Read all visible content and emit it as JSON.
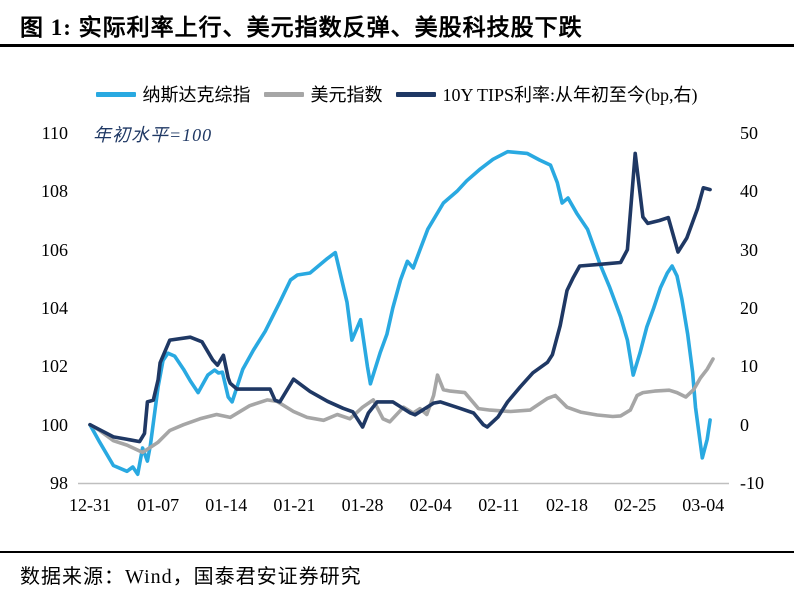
{
  "title": "图 1:  实际利率上行、美元指数反弹、美股科技股下跌",
  "annotation": "年初水平=100",
  "source_text": "数据来源：Wind，国泰君安证券研究",
  "colors": {
    "nasdaq_blue": "#29A9E1",
    "dollar_gray": "#A6A6A6",
    "tips_navy": "#1F3864",
    "axis_line": "#BFBFBF",
    "rule_black": "#000000",
    "annotation_navy": "#1F3864"
  },
  "chart_data": {
    "type": "line",
    "title": "实际利率上行、美元指数反弹、美股科技股下跌",
    "annotation": "年初水平=100",
    "x_tick_labels": [
      "12-31",
      "01-07",
      "01-14",
      "01-21",
      "01-28",
      "02-04",
      "02-11",
      "02-18",
      "02-25",
      "03-04"
    ],
    "x_tick_days": [
      0,
      7,
      14,
      21,
      28,
      35,
      42,
      49,
      56,
      63
    ],
    "x_domain_days": [
      0,
      64
    ],
    "left_axis": {
      "ticks": [
        110,
        108,
        106,
        104,
        102,
        100,
        98
      ],
      "range": [
        98,
        110
      ]
    },
    "right_axis": {
      "ticks": [
        50,
        40,
        30,
        20,
        10,
        0,
        -10
      ],
      "range": [
        -10,
        50
      ]
    },
    "grid": "off",
    "legend_position": "top",
    "series": [
      {
        "name": "纳斯达克综指",
        "axis": "left",
        "color": "#29A9E1",
        "points": [
          [
            0,
            100
          ],
          [
            1,
            99.4
          ],
          [
            2.4,
            98.6
          ],
          [
            3.8,
            98.4
          ],
          [
            4.4,
            98.55
          ],
          [
            4.9,
            98.3
          ],
          [
            5.4,
            99.2
          ],
          [
            5.9,
            98.75
          ],
          [
            6.2,
            99.3
          ],
          [
            7,
            101.3
          ],
          [
            7.5,
            102.2
          ],
          [
            8,
            102.45
          ],
          [
            8.7,
            102.35
          ],
          [
            9.6,
            101.9
          ],
          [
            10.3,
            101.5
          ],
          [
            11.1,
            101.1
          ],
          [
            12.1,
            101.7
          ],
          [
            12.8,
            101.87
          ],
          [
            13.2,
            101.77
          ],
          [
            13.6,
            101.8
          ],
          [
            14.2,
            100.95
          ],
          [
            14.6,
            100.78
          ],
          [
            15.7,
            101.9
          ],
          [
            16.8,
            102.56
          ],
          [
            18,
            103.2
          ],
          [
            19.5,
            104.2
          ],
          [
            20.6,
            104.96
          ],
          [
            21.3,
            105.13
          ],
          [
            22.6,
            105.2
          ],
          [
            24.4,
            105.7
          ],
          [
            25.2,
            105.9
          ],
          [
            26.4,
            104.2
          ],
          [
            26.9,
            102.9
          ],
          [
            27.8,
            103.6
          ],
          [
            28.5,
            102
          ],
          [
            28.8,
            101.4
          ],
          [
            29.8,
            102.46
          ],
          [
            30.5,
            103.1
          ],
          [
            31.1,
            104
          ],
          [
            31.9,
            104.96
          ],
          [
            32.6,
            105.6
          ],
          [
            33.2,
            105.37
          ],
          [
            33.9,
            106
          ],
          [
            34.7,
            106.7
          ],
          [
            36.3,
            107.6
          ],
          [
            37.7,
            108
          ],
          [
            38.7,
            108.36
          ],
          [
            40.1,
            108.77
          ],
          [
            41.4,
            109.1
          ],
          [
            42.9,
            109.36
          ],
          [
            44.9,
            109.3
          ],
          [
            46.2,
            109.07
          ],
          [
            47.3,
            108.9
          ],
          [
            48,
            108.3
          ],
          [
            48.5,
            107.6
          ],
          [
            49.1,
            107.77
          ],
          [
            50,
            107.25
          ],
          [
            51.1,
            106.7
          ],
          [
            52.4,
            105.5
          ],
          [
            53.4,
            104.7
          ],
          [
            54.5,
            103.7
          ],
          [
            55.2,
            102.9
          ],
          [
            55.8,
            101.7
          ],
          [
            56.5,
            102.46
          ],
          [
            57.2,
            103.35
          ],
          [
            57.9,
            104
          ],
          [
            58.6,
            104.7
          ],
          [
            59.3,
            105.2
          ],
          [
            59.8,
            105.44
          ],
          [
            60.3,
            105.1
          ],
          [
            60.8,
            104.3
          ],
          [
            61.4,
            103.1
          ],
          [
            61.9,
            101.8
          ],
          [
            62.2,
            100.6
          ],
          [
            62.9,
            98.86
          ],
          [
            63.4,
            99.5
          ],
          [
            63.7,
            100.16
          ]
        ]
      },
      {
        "name": "美元指数",
        "axis": "left",
        "color": "#A6A6A6",
        "points": [
          [
            0,
            100
          ],
          [
            1,
            99.8
          ],
          [
            2.4,
            99.45
          ],
          [
            3.8,
            99.3
          ],
          [
            5.4,
            99.05
          ],
          [
            7,
            99.4
          ],
          [
            8.2,
            99.8
          ],
          [
            9.6,
            100
          ],
          [
            11.3,
            100.2
          ],
          [
            13,
            100.35
          ],
          [
            14.4,
            100.25
          ],
          [
            16.4,
            100.65
          ],
          [
            18.2,
            100.85
          ],
          [
            19.2,
            100.8
          ],
          [
            20.9,
            100.45
          ],
          [
            22.3,
            100.25
          ],
          [
            24,
            100.15
          ],
          [
            25.4,
            100.35
          ],
          [
            26.7,
            100.2
          ],
          [
            28,
            100.6
          ],
          [
            29.1,
            100.85
          ],
          [
            30.1,
            100.2
          ],
          [
            30.8,
            100.1
          ],
          [
            32.2,
            100.6
          ],
          [
            33.2,
            100.4
          ],
          [
            33.9,
            100.55
          ],
          [
            34.6,
            100.35
          ],
          [
            35.3,
            101
          ],
          [
            35.7,
            101.7
          ],
          [
            36.3,
            101.2
          ],
          [
            37,
            101.15
          ],
          [
            38.5,
            101.1
          ],
          [
            39.9,
            100.55
          ],
          [
            41.1,
            100.5
          ],
          [
            43.2,
            100.45
          ],
          [
            45.2,
            100.5
          ],
          [
            47,
            100.9
          ],
          [
            47.8,
            101
          ],
          [
            49,
            100.6
          ],
          [
            50.4,
            100.43
          ],
          [
            52.1,
            100.33
          ],
          [
            53.7,
            100.28
          ],
          [
            54.5,
            100.3
          ],
          [
            55.5,
            100.5
          ],
          [
            56.2,
            101
          ],
          [
            56.8,
            101.1
          ],
          [
            58,
            101.15
          ],
          [
            59.5,
            101.18
          ],
          [
            60.3,
            101.1
          ],
          [
            61.2,
            100.95
          ],
          [
            62,
            101.2
          ],
          [
            62.7,
            101.6
          ],
          [
            63.4,
            101.9
          ],
          [
            64,
            102.25
          ]
        ]
      },
      {
        "name": "10Y TIPS利率:从年初至今(bp,右)",
        "axis": "right",
        "color": "#1F3864",
        "points": [
          [
            0,
            0
          ],
          [
            2.4,
            -2.1
          ],
          [
            4.1,
            -2.6
          ],
          [
            5.1,
            -2.9
          ],
          [
            5.6,
            -1.5
          ],
          [
            5.9,
            3.9
          ],
          [
            6.5,
            4.2
          ],
          [
            7,
            7.7
          ],
          [
            7.2,
            10.6
          ],
          [
            8.2,
            14.5
          ],
          [
            10.3,
            15
          ],
          [
            11.5,
            14.2
          ],
          [
            12.6,
            11.1
          ],
          [
            13.1,
            10.2
          ],
          [
            13.7,
            11.9
          ],
          [
            14.2,
            8
          ],
          [
            14.4,
            7.1
          ],
          [
            15.1,
            6.1
          ],
          [
            18.5,
            6.1
          ],
          [
            19,
            4.2
          ],
          [
            19.5,
            3.9
          ],
          [
            20.9,
            7.8
          ],
          [
            22.6,
            5.7
          ],
          [
            24.4,
            4
          ],
          [
            26,
            2.8
          ],
          [
            27,
            2.2
          ],
          [
            28,
            -0.4
          ],
          [
            28.6,
            2
          ],
          [
            29.5,
            3.9
          ],
          [
            31.1,
            3.9
          ],
          [
            32.9,
            2
          ],
          [
            33.4,
            1.7
          ],
          [
            35.3,
            3.7
          ],
          [
            36,
            3.9
          ],
          [
            38,
            2.8
          ],
          [
            39.4,
            2
          ],
          [
            40.4,
            0
          ],
          [
            40.8,
            -0.4
          ],
          [
            41.9,
            1.3
          ],
          [
            42.9,
            3.9
          ],
          [
            44.2,
            6.5
          ],
          [
            45.5,
            8.9
          ],
          [
            47,
            10.7
          ],
          [
            47.5,
            12
          ],
          [
            48.3,
            17
          ],
          [
            49,
            23
          ],
          [
            49.6,
            25.1
          ],
          [
            50.3,
            27.2
          ],
          [
            52.4,
            27.5
          ],
          [
            54.5,
            27.8
          ],
          [
            55.2,
            30
          ],
          [
            56,
            46.5
          ],
          [
            56.8,
            35.6
          ],
          [
            57.3,
            34.5
          ],
          [
            58.5,
            35
          ],
          [
            59.4,
            35.5
          ],
          [
            60.4,
            29.6
          ],
          [
            61.3,
            32
          ],
          [
            62.4,
            37
          ],
          [
            63,
            40.6
          ],
          [
            63.7,
            40.3
          ]
        ]
      }
    ]
  }
}
